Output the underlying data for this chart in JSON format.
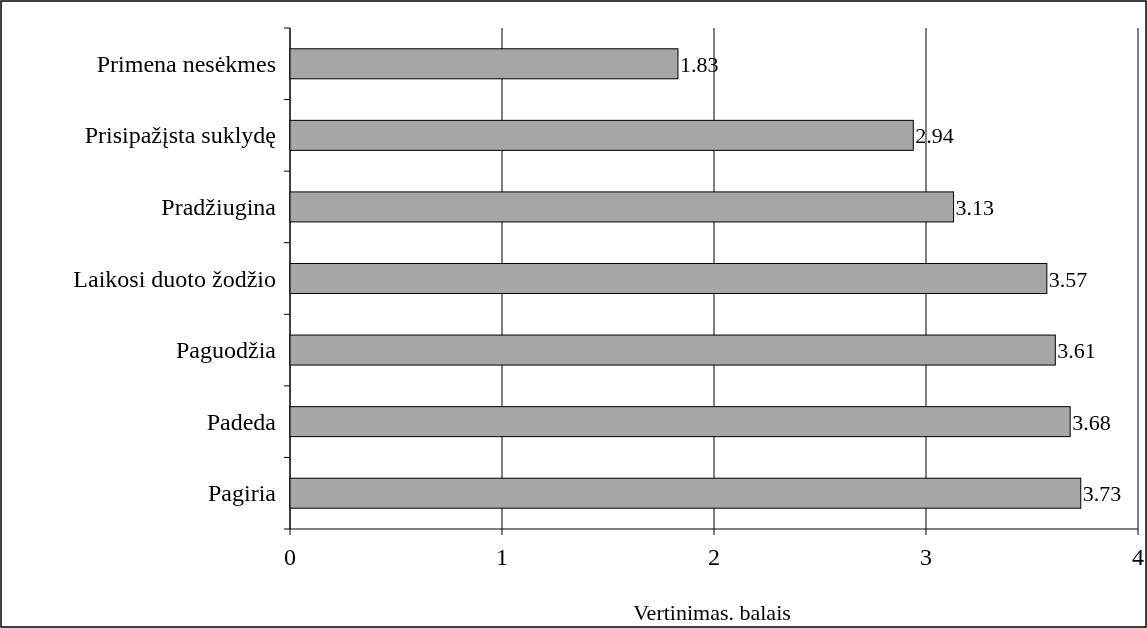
{
  "chart_data": {
    "type": "bar",
    "orientation": "horizontal",
    "categories": [
      "Primena nesėkmes",
      "Prisipažįsta suklydę",
      "Pradžiugina",
      "Laikosi duoto žodžio",
      "Paguodžia",
      "Padeda",
      "Pagiria"
    ],
    "values": [
      1.83,
      2.94,
      3.13,
      3.57,
      3.61,
      3.68,
      3.73
    ],
    "color": "#a6a6a6",
    "xlim": [
      0,
      4
    ],
    "xticks": [
      0,
      1,
      2,
      3,
      4
    ],
    "grid": "x",
    "data_labels": true,
    "xlabel": "Vertinimas. balais"
  }
}
